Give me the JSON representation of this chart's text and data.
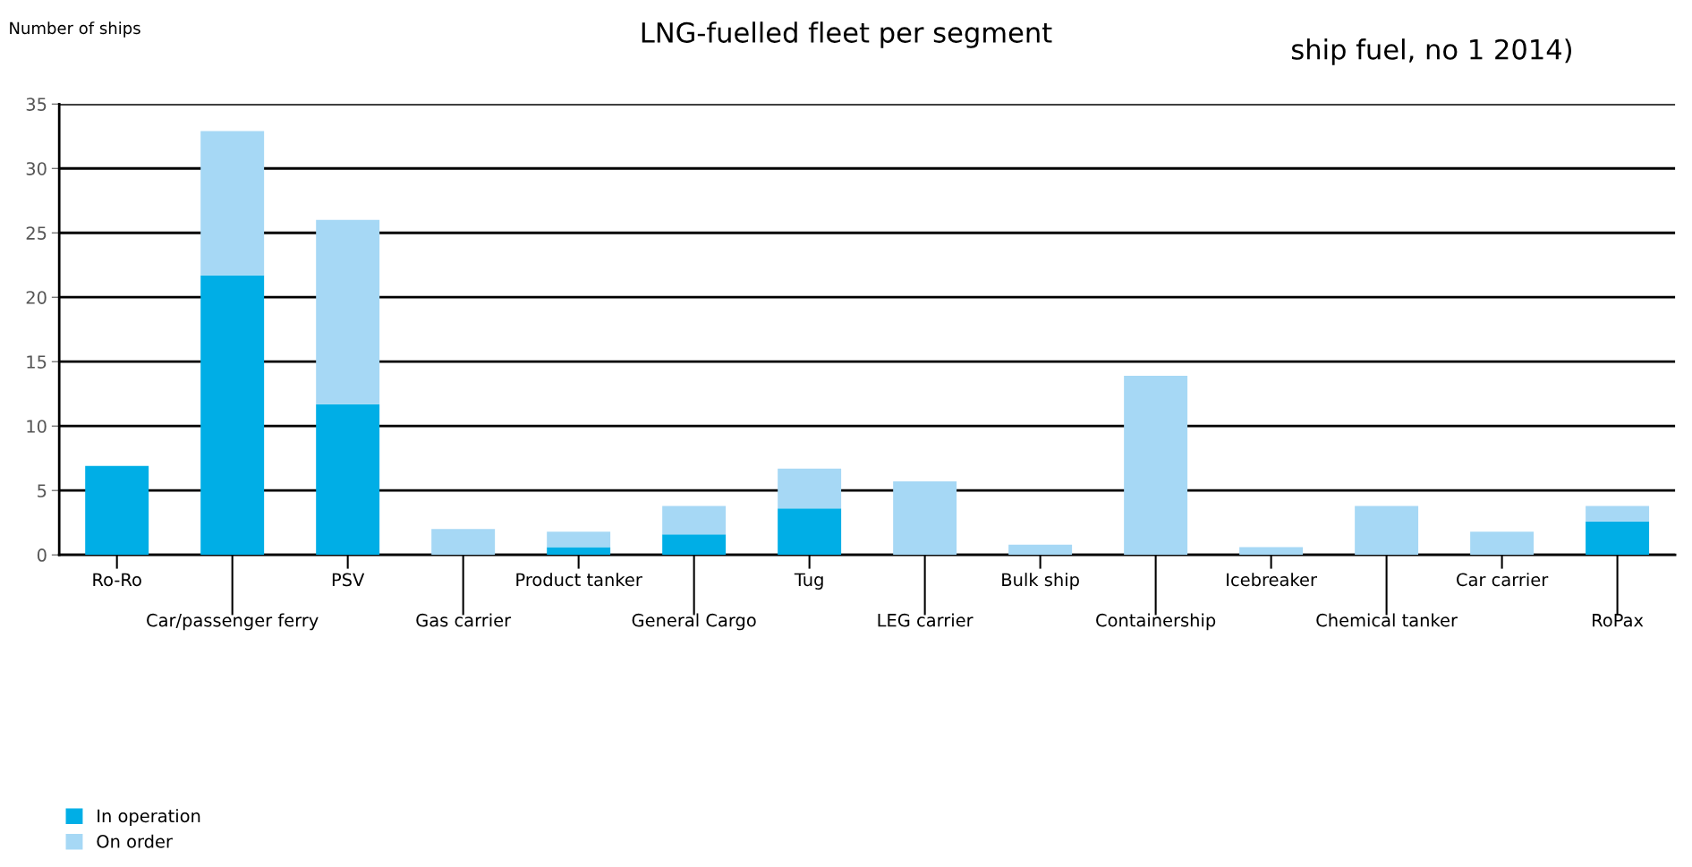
{
  "chart_data": {
    "type": "bar",
    "title": "LNG-fuelled fleet per segment",
    "ylabel": "Number of ships",
    "annotations": [
      "ship fuel, no 1 2014)"
    ],
    "categories": [
      "Ro-Ro",
      "Car/passenger ferry",
      "PSV",
      "Gas carrier",
      "Product tanker",
      "General Cargo",
      "Tug",
      "LEG carrier",
      "Bulk ship",
      "Containership",
      "Icebreaker",
      "Chemical tanker",
      "Car carrier",
      "RoPax"
    ],
    "stacked": true,
    "series": [
      {
        "name": "In operation",
        "color": "#00aee6",
        "values": [
          6.9,
          21.7,
          11.7,
          0,
          0.6,
          1.6,
          3.6,
          0,
          0,
          0,
          0,
          0,
          0,
          2.6
        ]
      },
      {
        "name": "On order",
        "color": "#a6d8f5",
        "values": [
          0,
          11.2,
          14.3,
          2.0,
          1.2,
          2.2,
          3.1,
          5.7,
          0.8,
          13.9,
          0.6,
          3.8,
          1.8,
          1.2
        ]
      }
    ],
    "ylim": [
      0,
      35
    ],
    "yticks": [
      0,
      5,
      10,
      15,
      20,
      25,
      30,
      35
    ],
    "grid": "y",
    "legend": "bottom left"
  }
}
